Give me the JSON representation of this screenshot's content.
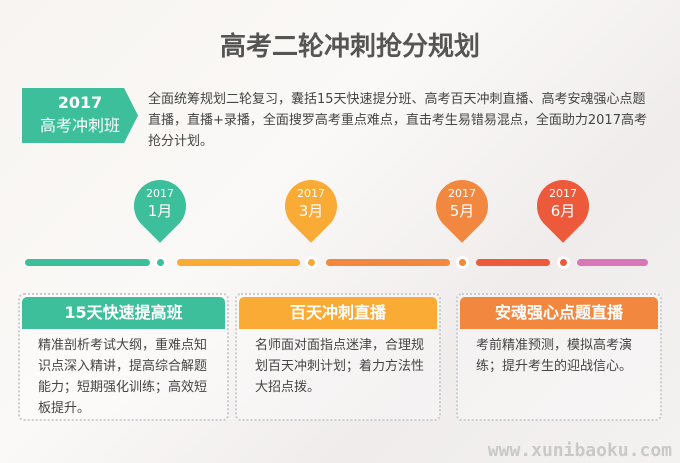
{
  "title": "高考二轮冲刺抢分规划",
  "badge": {
    "year": "2017",
    "name": "高考冲刺班"
  },
  "intro": "全面统筹规划二轮复习，囊括15天快速提分班、高考百天冲刺直播、高考安魂强心点题直播，直播+录播，全面搜罗高考重点难点，直击考生易错易混点，全面助力2017高考抢分计划。",
  "timeline": [
    {
      "year": "2017",
      "month": "1月",
      "color": "#3cbf9a"
    },
    {
      "year": "2017",
      "month": "3月",
      "color": "#f9ab35"
    },
    {
      "year": "2017",
      "month": "5月",
      "color": "#f2883f"
    },
    {
      "year": "2017",
      "month": "6月",
      "color": "#ec5a3b"
    }
  ],
  "cards": [
    {
      "title": "15天快速提高班",
      "body": "精准剖析考试大纲，重难点知识点深入精讲，提高综合解题能力；短期强化训练；高效短板提升。",
      "color": "#3cbf9a"
    },
    {
      "title": "百天冲刺直播",
      "body": "名师面对面指点迷津，合理规划百天冲刺计划；着力方法性大招点拨。",
      "color": "#f9ab35"
    },
    {
      "title": "安魂强心点题直播",
      "body": "考前精准预测，模拟高考演练；提升考生的迎战信心。",
      "color": "#f2883f"
    }
  ],
  "watermark": "www.xunibaoku.com"
}
